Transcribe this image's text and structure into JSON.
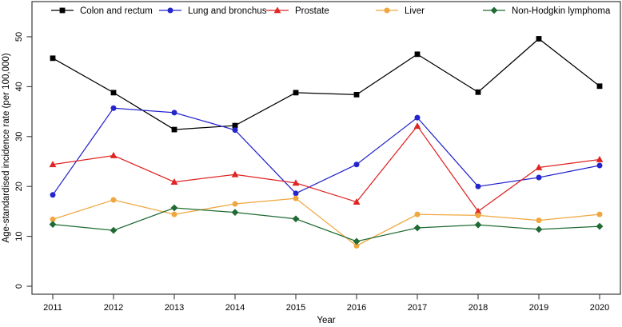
{
  "chart_data": {
    "type": "line",
    "title": "",
    "xlabel": "Year",
    "ylabel": "Age-standardised incidence rate (per 100,000)",
    "x": [
      2011,
      2012,
      2013,
      2014,
      2015,
      2016,
      2017,
      2018,
      2019,
      2020
    ],
    "ylim": [
      0,
      57
    ],
    "yticks": [
      0,
      10,
      20,
      30,
      40,
      50
    ],
    "grid": false,
    "legend_position": "top-inside",
    "axis_color": "#3a3a3a",
    "series": [
      {
        "name": "Colon and rectum",
        "color": "#000000",
        "marker": "square",
        "values": [
          45.7,
          38.8,
          31.4,
          32.2,
          38.8,
          38.4,
          46.5,
          38.9,
          49.6,
          40.1
        ]
      },
      {
        "name": "Lung and bronchus",
        "color": "#2525cd",
        "marker": "circle",
        "values": [
          18.3,
          35.7,
          34.8,
          31.3,
          18.6,
          24.4,
          33.8,
          20.0,
          21.8,
          24.2
        ]
      },
      {
        "name": "Prostate",
        "color": "#e02424",
        "marker": "triangle",
        "values": [
          24.4,
          26.2,
          20.9,
          22.4,
          20.7,
          16.9,
          32.1,
          15.0,
          23.8,
          25.4
        ]
      },
      {
        "name": "Liver",
        "color": "#efa73f",
        "marker": "circle",
        "values": [
          13.4,
          17.3,
          14.4,
          16.5,
          17.6,
          8.1,
          14.4,
          14.2,
          13.2,
          14.4
        ]
      },
      {
        "name": "Non-Hodgkin lymphoma",
        "color": "#1f6b33",
        "marker": "diamond",
        "values": [
          12.4,
          11.2,
          15.7,
          14.8,
          13.5,
          9.0,
          11.7,
          12.3,
          11.4,
          12.0
        ]
      }
    ]
  }
}
